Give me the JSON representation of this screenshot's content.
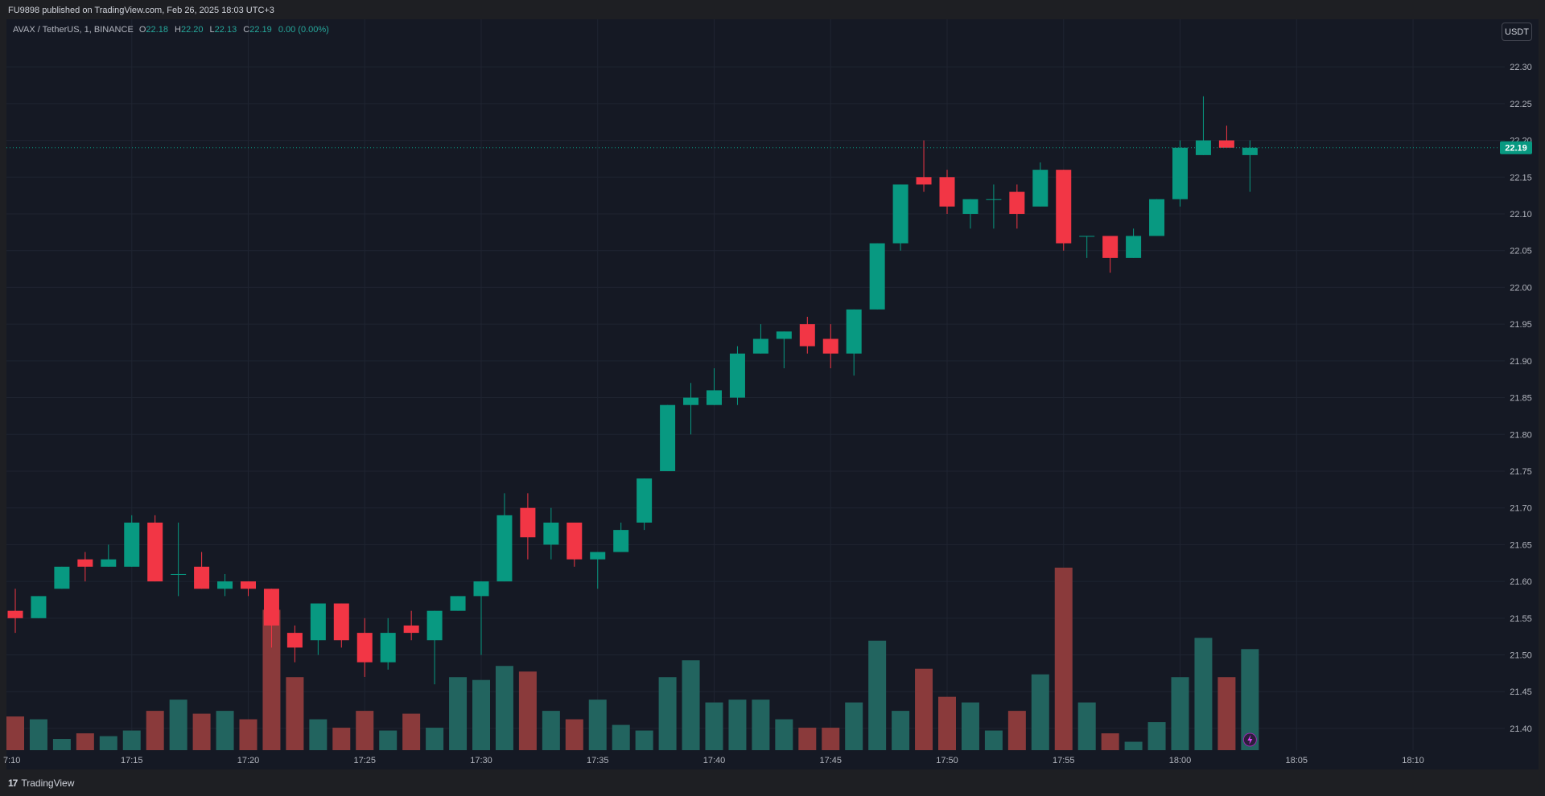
{
  "header": {
    "published_text": "FU9898 published on TradingView.com, Feb 26, 2025 18:03 UTC+3"
  },
  "legend": {
    "symbol": "AVAX / TetherUS, 1, BINANCE",
    "o_label": "O",
    "o_value": "22.18",
    "h_label": "H",
    "h_value": "22.20",
    "l_label": "L",
    "l_value": "22.13",
    "c_label": "C",
    "c_value": "22.19",
    "change": "0.00 (0.00%)"
  },
  "unit_button": "USDT",
  "footer": {
    "brand": "TradingView",
    "logo_text": "17"
  },
  "colors": {
    "up": "#089981",
    "down": "#f23645",
    "vol_up": "#22645f",
    "vol_down": "#8a3a3b",
    "grid": "#1f2431",
    "text": "#b2b5be",
    "price_line": "#089981"
  },
  "chart_data": {
    "type": "candlestick",
    "title": "AVAX / TetherUS, 1, BINANCE",
    "y_ticks": [
      "22.30",
      "22.25",
      "22.20",
      "22.15",
      "22.10",
      "22.05",
      "22.00",
      "21.95",
      "21.90",
      "21.85",
      "21.80",
      "21.75",
      "21.70",
      "21.65",
      "21.60",
      "21.55",
      "21.50",
      "21.45",
      "21.40"
    ],
    "ylim": [
      21.3704,
      22.3363
    ],
    "x_ticks": [
      {
        "label": "7:10",
        "minute": 9.85
      },
      {
        "label": "17:15",
        "minute": 15
      },
      {
        "label": "17:20",
        "minute": 20
      },
      {
        "label": "17:25",
        "minute": 25
      },
      {
        "label": "17:30",
        "minute": 30
      },
      {
        "label": "17:35",
        "minute": 35
      },
      {
        "label": "17:40",
        "minute": 40
      },
      {
        "label": "17:45",
        "minute": 45
      },
      {
        "label": "17:50",
        "minute": 50
      },
      {
        "label": "17:55",
        "minute": 55
      },
      {
        "label": "18:00",
        "minute": 60
      },
      {
        "label": "18:05",
        "minute": 65
      },
      {
        "label": "18:10",
        "minute": 70
      }
    ],
    "last_price": "22.19",
    "candles": [
      {
        "t": "17:10",
        "o": 21.56,
        "h": 21.59,
        "l": 21.53,
        "c": 21.55
      },
      {
        "t": "17:11",
        "o": 21.55,
        "h": 21.58,
        "l": 21.55,
        "c": 21.58
      },
      {
        "t": "17:12",
        "o": 21.59,
        "h": 21.62,
        "l": 21.59,
        "c": 21.62
      },
      {
        "t": "17:13",
        "o": 21.63,
        "h": 21.64,
        "l": 21.6,
        "c": 21.62
      },
      {
        "t": "17:14",
        "o": 21.62,
        "h": 21.65,
        "l": 21.62,
        "c": 21.63
      },
      {
        "t": "17:15",
        "o": 21.62,
        "h": 21.69,
        "l": 21.62,
        "c": 21.68
      },
      {
        "t": "17:16",
        "o": 21.68,
        "h": 21.69,
        "l": 21.6,
        "c": 21.6
      },
      {
        "t": "17:17",
        "o": 21.61,
        "h": 21.68,
        "l": 21.58,
        "c": 21.61
      },
      {
        "t": "17:18",
        "o": 21.62,
        "h": 21.64,
        "l": 21.59,
        "c": 21.59
      },
      {
        "t": "17:19",
        "o": 21.59,
        "h": 21.61,
        "l": 21.58,
        "c": 21.6
      },
      {
        "t": "17:20",
        "o": 21.6,
        "h": 21.6,
        "l": 21.58,
        "c": 21.59
      },
      {
        "t": "17:21",
        "o": 21.59,
        "h": 21.59,
        "l": 21.51,
        "c": 21.54
      },
      {
        "t": "17:22",
        "o": 21.53,
        "h": 21.54,
        "l": 21.49,
        "c": 21.51
      },
      {
        "t": "17:23",
        "o": 21.52,
        "h": 21.57,
        "l": 21.5,
        "c": 21.57
      },
      {
        "t": "17:24",
        "o": 21.57,
        "h": 21.57,
        "l": 21.51,
        "c": 21.52
      },
      {
        "t": "17:25",
        "o": 21.53,
        "h": 21.55,
        "l": 21.47,
        "c": 21.49
      },
      {
        "t": "17:26",
        "o": 21.49,
        "h": 21.55,
        "l": 21.48,
        "c": 21.53
      },
      {
        "t": "17:27",
        "o": 21.54,
        "h": 21.56,
        "l": 21.52,
        "c": 21.53
      },
      {
        "t": "17:28",
        "o": 21.52,
        "h": 21.56,
        "l": 21.46,
        "c": 21.56
      },
      {
        "t": "17:29",
        "o": 21.56,
        "h": 21.58,
        "l": 21.56,
        "c": 21.58
      },
      {
        "t": "17:30",
        "o": 21.58,
        "h": 21.6,
        "l": 21.5,
        "c": 21.6
      },
      {
        "t": "17:31",
        "o": 21.6,
        "h": 21.72,
        "l": 21.6,
        "c": 21.69
      },
      {
        "t": "17:32",
        "o": 21.7,
        "h": 21.72,
        "l": 21.63,
        "c": 21.66
      },
      {
        "t": "17:33",
        "o": 21.65,
        "h": 21.7,
        "l": 21.63,
        "c": 21.68
      },
      {
        "t": "17:34",
        "o": 21.68,
        "h": 21.68,
        "l": 21.62,
        "c": 21.63
      },
      {
        "t": "17:35",
        "o": 21.63,
        "h": 21.64,
        "l": 21.59,
        "c": 21.64
      },
      {
        "t": "17:36",
        "o": 21.64,
        "h": 21.68,
        "l": 21.64,
        "c": 21.67
      },
      {
        "t": "17:37",
        "o": 21.68,
        "h": 21.74,
        "l": 21.67,
        "c": 21.74
      },
      {
        "t": "17:38",
        "o": 21.75,
        "h": 21.84,
        "l": 21.75,
        "c": 21.84
      },
      {
        "t": "17:39",
        "o": 21.84,
        "h": 21.87,
        "l": 21.8,
        "c": 21.85
      },
      {
        "t": "17:40",
        "o": 21.84,
        "h": 21.89,
        "l": 21.84,
        "c": 21.86
      },
      {
        "t": "17:41",
        "o": 21.85,
        "h": 21.92,
        "l": 21.84,
        "c": 21.91
      },
      {
        "t": "17:42",
        "o": 21.91,
        "h": 21.95,
        "l": 21.91,
        "c": 21.93
      },
      {
        "t": "17:43",
        "o": 21.93,
        "h": 21.94,
        "l": 21.89,
        "c": 21.94
      },
      {
        "t": "17:44",
        "o": 21.95,
        "h": 21.96,
        "l": 21.91,
        "c": 21.92
      },
      {
        "t": "17:45",
        "o": 21.93,
        "h": 21.95,
        "l": 21.89,
        "c": 21.91
      },
      {
        "t": "17:46",
        "o": 21.91,
        "h": 21.97,
        "l": 21.88,
        "c": 21.97
      },
      {
        "t": "17:47",
        "o": 21.97,
        "h": 22.06,
        "l": 21.97,
        "c": 22.06
      },
      {
        "t": "17:48",
        "o": 22.06,
        "h": 22.14,
        "l": 22.05,
        "c": 22.14
      },
      {
        "t": "17:49",
        "o": 22.15,
        "h": 22.2,
        "l": 22.13,
        "c": 22.14
      },
      {
        "t": "17:50",
        "o": 22.15,
        "h": 22.16,
        "l": 22.1,
        "c": 22.11
      },
      {
        "t": "17:51",
        "o": 22.1,
        "h": 22.12,
        "l": 22.08,
        "c": 22.12
      },
      {
        "t": "17:52",
        "o": 22.12,
        "h": 22.14,
        "l": 22.08,
        "c": 22.12
      },
      {
        "t": "17:53",
        "o": 22.13,
        "h": 22.14,
        "l": 22.08,
        "c": 22.1
      },
      {
        "t": "17:54",
        "o": 22.11,
        "h": 22.17,
        "l": 22.11,
        "c": 22.16
      },
      {
        "t": "17:55",
        "o": 22.16,
        "h": 22.16,
        "l": 22.05,
        "c": 22.06
      },
      {
        "t": "17:56",
        "o": 22.07,
        "h": 22.07,
        "l": 22.04,
        "c": 22.07
      },
      {
        "t": "17:57",
        "o": 22.07,
        "h": 22.07,
        "l": 22.02,
        "c": 22.04
      },
      {
        "t": "17:58",
        "o": 22.04,
        "h": 22.08,
        "l": 22.04,
        "c": 22.07
      },
      {
        "t": "17:59",
        "o": 22.07,
        "h": 22.12,
        "l": 22.07,
        "c": 22.12
      },
      {
        "t": "18:00",
        "o": 22.12,
        "h": 22.2,
        "l": 22.11,
        "c": 22.19
      },
      {
        "t": "18:01",
        "o": 22.18,
        "h": 22.26,
        "l": 22.18,
        "c": 22.2
      },
      {
        "t": "18:02",
        "o": 22.2,
        "h": 22.22,
        "l": 22.19,
        "c": 22.19
      },
      {
        "t": "18:03",
        "o": 22.18,
        "h": 22.2,
        "l": 22.13,
        "c": 22.19
      }
    ],
    "volume": [
      12,
      11,
      4,
      6,
      5,
      7,
      14,
      18,
      13,
      14,
      11,
      50,
      26,
      11,
      8,
      14,
      7,
      13,
      8,
      26,
      25,
      30,
      28,
      14,
      11,
      18,
      9,
      7,
      26,
      32,
      17,
      18,
      18,
      11,
      8,
      8,
      17,
      39,
      14,
      29,
      19,
      17,
      7,
      14,
      27,
      65,
      17,
      6,
      3,
      10,
      26,
      40,
      26,
      36
    ]
  }
}
